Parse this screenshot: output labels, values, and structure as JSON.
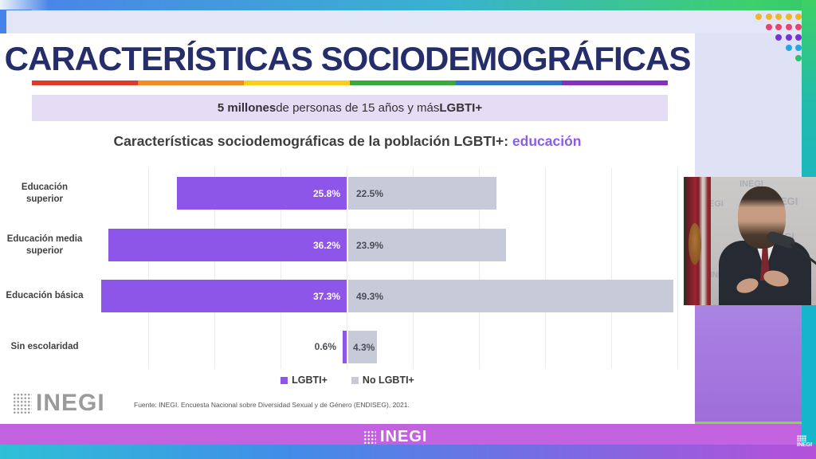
{
  "brand": "INEGI",
  "slide": {
    "title": "CARACTERÍSTICAS SOCIODEMOGRÁFICAS",
    "rainbow_colors": [
      "#dd3a2a",
      "#f28c1e",
      "#f7cf1b",
      "#3aa83c",
      "#2e74cf",
      "#8330bd"
    ],
    "banner": {
      "highlight_count": "5 millones",
      "middle": " de personas de 15 años y más ",
      "suffix": "LGBTI+"
    },
    "chart_title": {
      "main": "Características sociodemográficas de la población LGBTI+: ",
      "highlight": "educación"
    },
    "source": "Fuente:  INEGI. Encuesta Nacional sobre Diversidad Sexual y de Género (ENDISEG), 2021."
  },
  "chart_data": {
    "type": "bar",
    "orientation": "horizontal-diverging",
    "categories": [
      "Educación superior",
      "Educación media superior",
      "Educación básica",
      "Sin escolaridad"
    ],
    "series": [
      {
        "name": "LGBTI+",
        "color": "#8e55e9",
        "values": [
          25.8,
          36.2,
          37.3,
          0.6
        ]
      },
      {
        "name": "No LGBTI+",
        "color": "#c7cbd9",
        "values": [
          22.5,
          23.9,
          49.3,
          4.3
        ]
      }
    ],
    "value_suffix": "%",
    "axis_range_each_side": [
      0,
      50
    ],
    "grid_step_pct": 10,
    "legend_position": "bottom"
  },
  "decor": {
    "dot_row_colors": [
      "#f0b429",
      "#e8436e",
      "#7433d6",
      "#22a7e0",
      "#2fbf71"
    ]
  }
}
